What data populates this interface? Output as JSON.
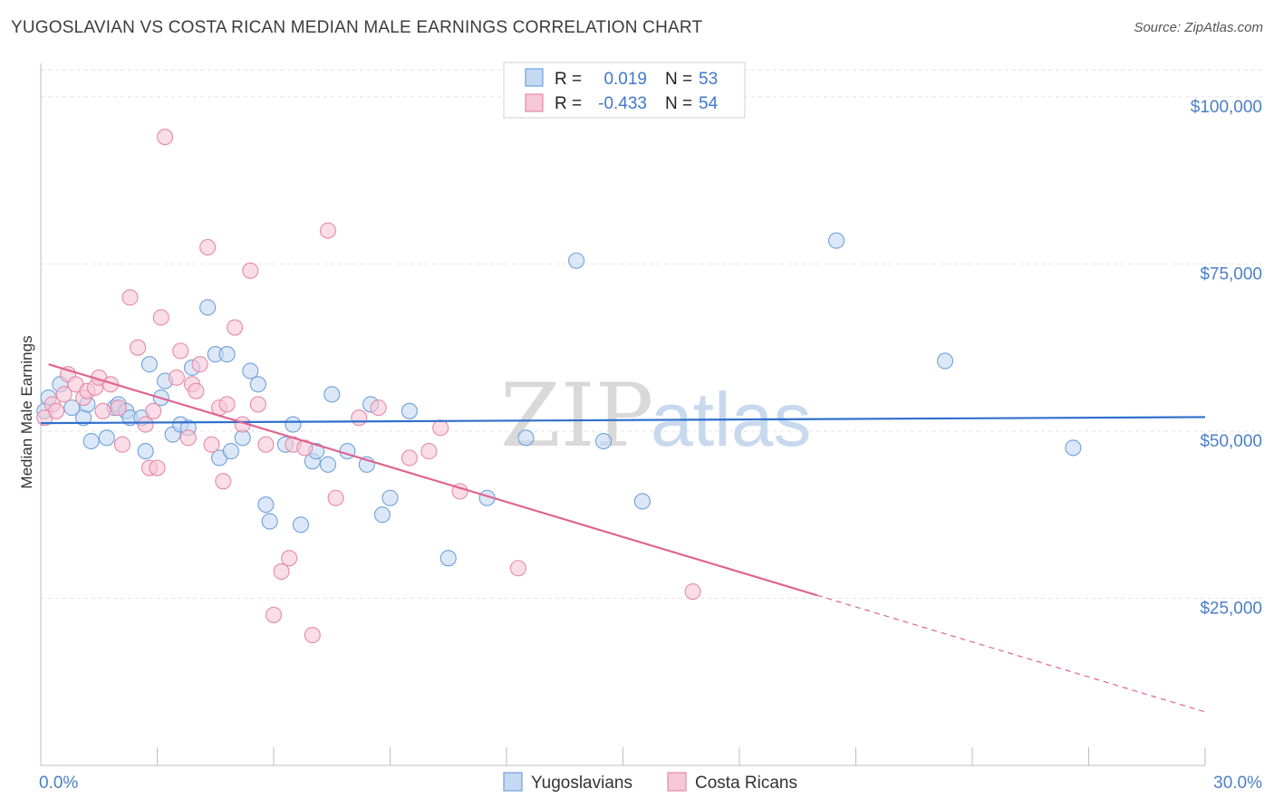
{
  "title": "YUGOSLAVIAN VS COSTA RICAN MEDIAN MALE EARNINGS CORRELATION CHART",
  "source": "Source: ZipAtlas.com",
  "watermark": {
    "part1": "ZIP",
    "part2": "atlas"
  },
  "legend_top": [
    {
      "r_label": "R =",
      "r_value": "0.019",
      "n_label": "N =",
      "n_value": "53"
    },
    {
      "r_label": "R =",
      "r_value": "-0.433",
      "n_label": "N =",
      "n_value": "54"
    }
  ],
  "legend_bottom": [
    "Yugoslavians",
    "Costa Ricans"
  ],
  "chart_data": {
    "type": "scatter",
    "title": "YUGOSLAVIAN VS COSTA RICAN MEDIAN MALE EARNINGS CORRELATION CHART",
    "xlabel": "",
    "ylabel": "Median Male Earnings",
    "xlim": [
      0,
      30
    ],
    "ylim": [
      0,
      105000
    ],
    "x_tick_labels": [
      "0.0%",
      "30.0%"
    ],
    "y_ticks": [
      25000,
      50000,
      75000,
      100000
    ],
    "y_tick_labels": [
      "$25,000",
      "$50,000",
      "$75,000",
      "$100,000"
    ],
    "grid": true,
    "legend_position": "top-center",
    "series": [
      {
        "name": "Yugoslavians",
        "color": "#6fa0dc",
        "fill": "#c5d9f3",
        "trend": {
          "x": [
            0,
            30
          ],
          "y": [
            51200,
            52100
          ],
          "dashed_from": null
        },
        "points": [
          [
            0.2,
            55000
          ],
          [
            0.5,
            57000
          ],
          [
            0.8,
            53500
          ],
          [
            1.1,
            52000
          ],
          [
            1.3,
            48500
          ],
          [
            1.7,
            49000
          ],
          [
            1.9,
            53500
          ],
          [
            2.0,
            54000
          ],
          [
            2.2,
            53000
          ],
          [
            2.3,
            52000
          ],
          [
            2.6,
            52000
          ],
          [
            2.7,
            47000
          ],
          [
            2.8,
            60000
          ],
          [
            3.1,
            55000
          ],
          [
            3.2,
            57500
          ],
          [
            3.4,
            49500
          ],
          [
            3.6,
            51000
          ],
          [
            3.8,
            50500
          ],
          [
            3.9,
            59500
          ],
          [
            4.3,
            68500
          ],
          [
            4.5,
            61500
          ],
          [
            4.6,
            46000
          ],
          [
            4.8,
            61500
          ],
          [
            4.9,
            47000
          ],
          [
            5.2,
            49000
          ],
          [
            5.4,
            59000
          ],
          [
            5.6,
            57000
          ],
          [
            5.8,
            39000
          ],
          [
            5.9,
            36500
          ],
          [
            6.3,
            48000
          ],
          [
            6.5,
            51000
          ],
          [
            6.7,
            36000
          ],
          [
            7.0,
            45500
          ],
          [
            7.1,
            47000
          ],
          [
            7.4,
            45000
          ],
          [
            7.5,
            55500
          ],
          [
            7.9,
            47000
          ],
          [
            8.4,
            45000
          ],
          [
            8.5,
            54000
          ],
          [
            8.8,
            37500
          ],
          [
            9.0,
            40000
          ],
          [
            9.5,
            53000
          ],
          [
            10.5,
            31000
          ],
          [
            11.5,
            40000
          ],
          [
            12.5,
            49000
          ],
          [
            13.8,
            75500
          ],
          [
            14.5,
            48500
          ],
          [
            15.5,
            39500
          ],
          [
            20.5,
            78500
          ],
          [
            23.3,
            60500
          ],
          [
            26.6,
            47500
          ],
          [
            0.1,
            53000
          ],
          [
            1.2,
            54000
          ]
        ]
      },
      {
        "name": "Costa Ricans",
        "color": "#e68aa8",
        "fill": "#f6c7d6",
        "trend": {
          "x": [
            0.2,
            30
          ],
          "y": [
            60000,
            8000
          ],
          "dashed_from": 20.0
        },
        "points": [
          [
            0.1,
            52000
          ],
          [
            0.3,
            54000
          ],
          [
            0.6,
            55500
          ],
          [
            0.7,
            58500
          ],
          [
            0.9,
            57000
          ],
          [
            1.1,
            55000
          ],
          [
            1.2,
            56000
          ],
          [
            1.4,
            56500
          ],
          [
            1.5,
            58000
          ],
          [
            1.6,
            53000
          ],
          [
            1.8,
            57000
          ],
          [
            2.0,
            53500
          ],
          [
            2.1,
            48000
          ],
          [
            2.3,
            70000
          ],
          [
            2.5,
            62500
          ],
          [
            2.7,
            51000
          ],
          [
            2.8,
            44500
          ],
          [
            3.0,
            44500
          ],
          [
            3.1,
            67000
          ],
          [
            3.2,
            94000
          ],
          [
            3.5,
            58000
          ],
          [
            3.6,
            62000
          ],
          [
            3.8,
            49000
          ],
          [
            3.9,
            57000
          ],
          [
            4.0,
            56000
          ],
          [
            4.1,
            60000
          ],
          [
            4.3,
            77500
          ],
          [
            4.4,
            48000
          ],
          [
            4.6,
            53500
          ],
          [
            4.7,
            42500
          ],
          [
            4.8,
            54000
          ],
          [
            5.0,
            65500
          ],
          [
            5.2,
            51000
          ],
          [
            5.4,
            74000
          ],
          [
            5.6,
            54000
          ],
          [
            5.8,
            48000
          ],
          [
            6.0,
            22500
          ],
          [
            6.2,
            29000
          ],
          [
            6.4,
            31000
          ],
          [
            6.5,
            48000
          ],
          [
            6.8,
            47500
          ],
          [
            7.0,
            19500
          ],
          [
            7.4,
            80000
          ],
          [
            7.6,
            40000
          ],
          [
            8.2,
            52000
          ],
          [
            8.7,
            53500
          ],
          [
            9.5,
            46000
          ],
          [
            10.0,
            47000
          ],
          [
            10.3,
            50500
          ],
          [
            10.8,
            41000
          ],
          [
            12.3,
            29500
          ],
          [
            16.8,
            26000
          ],
          [
            0.4,
            53000
          ],
          [
            2.9,
            53000
          ]
        ]
      }
    ]
  }
}
